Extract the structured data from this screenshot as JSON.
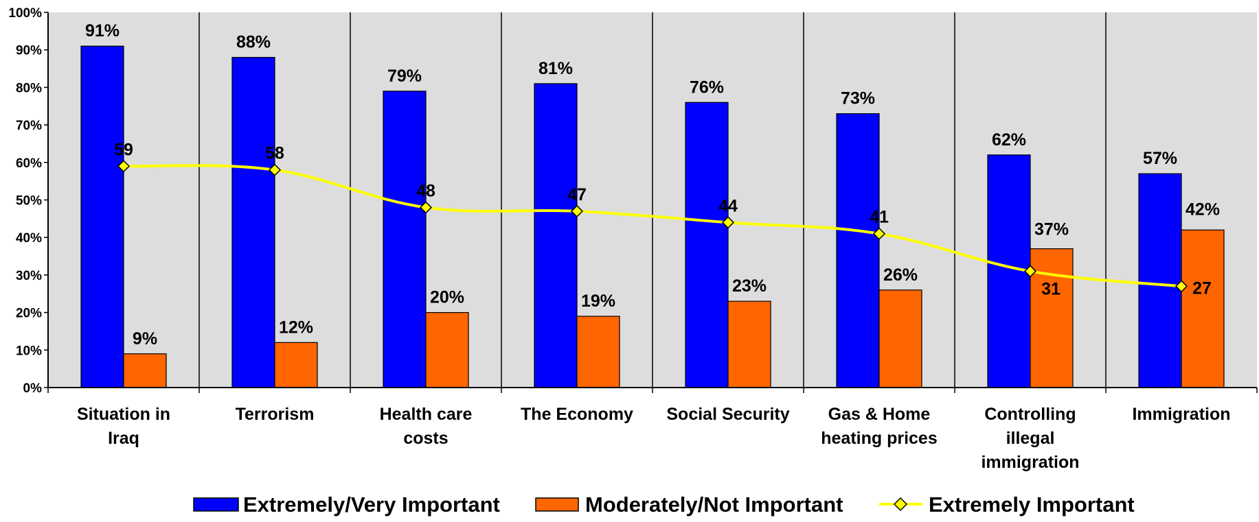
{
  "chart_data": {
    "type": "bar",
    "categories": [
      [
        "Situation in",
        "Iraq"
      ],
      [
        "Terrorism"
      ],
      [
        "Health care",
        "costs"
      ],
      [
        "The Economy"
      ],
      [
        "Social Security"
      ],
      [
        "Gas & Home",
        "heating prices"
      ],
      [
        "Controlling",
        "illegal",
        "immigration"
      ],
      [
        "Immigration"
      ]
    ],
    "ylim": [
      0,
      100
    ],
    "yticks": [
      "0%",
      "10%",
      "20%",
      "30%",
      "40%",
      "50%",
      "60%",
      "70%",
      "80%",
      "90%",
      "100%"
    ],
    "title": "",
    "xlabel": "",
    "ylabel": "",
    "series": [
      {
        "name": "Extremely/Very Important",
        "kind": "bar",
        "color": "#0000FF",
        "values": [
          91,
          88,
          79,
          81,
          76,
          73,
          62,
          57
        ],
        "labels": [
          "91%",
          "88%",
          "79%",
          "81%",
          "76%",
          "73%",
          "62%",
          "57%"
        ]
      },
      {
        "name": "Moderately/Not Important",
        "kind": "bar",
        "color": "#FF6600",
        "values": [
          9,
          12,
          20,
          19,
          23,
          26,
          37,
          42
        ],
        "labels": [
          "9%",
          "12%",
          "20%",
          "19%",
          "23%",
          "26%",
          "37%",
          "42%"
        ]
      },
      {
        "name": "Extremely Important",
        "kind": "line",
        "color": "#FFFF00",
        "marker": "diamond",
        "values": [
          59,
          58,
          48,
          47,
          44,
          41,
          31,
          27
        ],
        "labels": [
          "59",
          "58",
          "48",
          "47",
          "44",
          "41",
          "31",
          "27"
        ]
      }
    ],
    "plot_background": "#DDDDDD",
    "grid": false,
    "category_dividers": true,
    "legend": "bottom"
  }
}
